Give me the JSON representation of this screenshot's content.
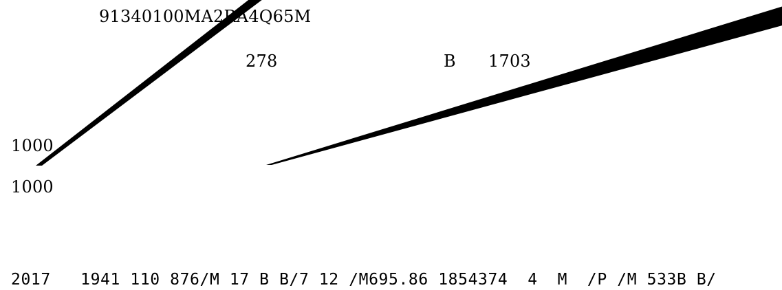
{
  "document": {
    "registration_code": "91340100MA2RA4Q65M",
    "line2": {
      "left_number": "278",
      "letter": "B",
      "right_number": "1703"
    },
    "left_values": [
      "1000",
      "1000"
    ],
    "bottom_line": "2017   1941 110 876/M 17 B B/7 12 /M695.86 1854374  4  M  /P /M 533B B/"
  },
  "colors": {
    "ink": "#000000",
    "background": "#ffffff"
  }
}
